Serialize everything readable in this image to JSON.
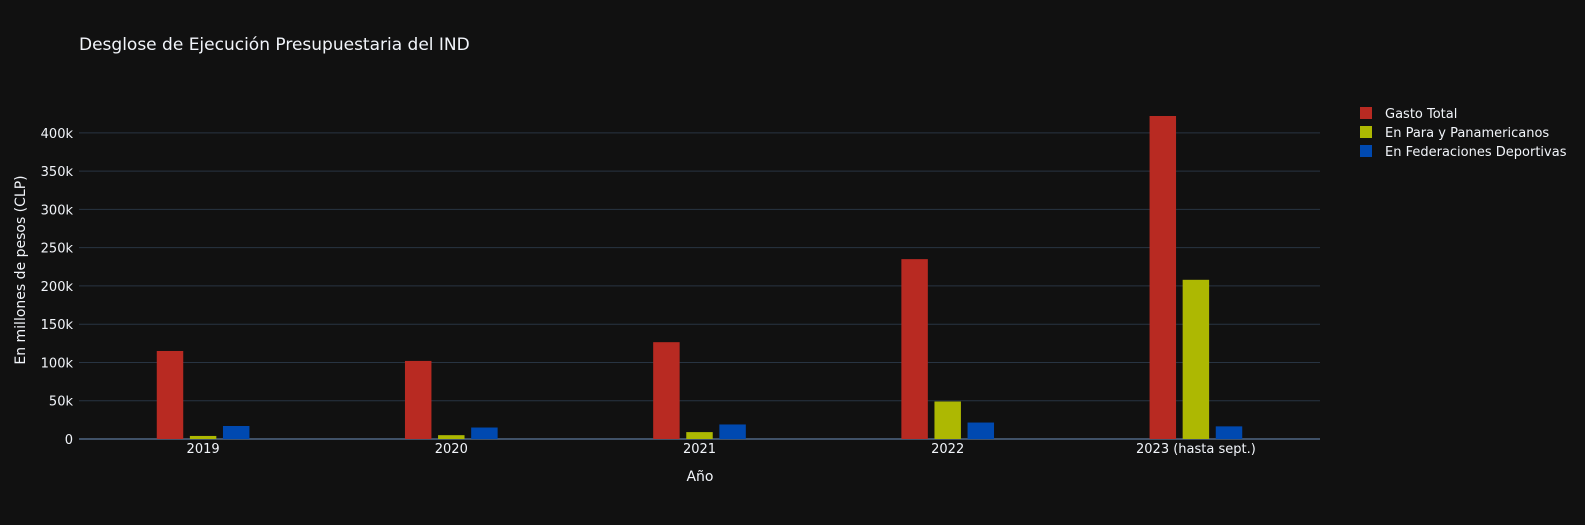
{
  "chart_data": {
    "type": "bar",
    "title": "Desglose de Ejecución Presupuestaria del IND",
    "xlabel": "Año",
    "ylabel": "En millones de pesos (CLP)",
    "categories": [
      "2019",
      "2020",
      "2021",
      "2022",
      "2023 (hasta sept.)"
    ],
    "ylim": [
      0,
      422000
    ],
    "yticks": [
      0,
      50000,
      100000,
      150000,
      200000,
      250000,
      300000,
      350000,
      400000
    ],
    "ytick_labels": [
      "0",
      "50k",
      "100k",
      "150k",
      "200k",
      "250k",
      "300k",
      "350k",
      "400k"
    ],
    "grid": true,
    "legend_position": "top-right",
    "series": [
      {
        "name": "Gasto Total",
        "color": "#b82a22",
        "values": [
          115000,
          102000,
          126500,
          235000,
          422000
        ]
      },
      {
        "name": "En Para y Panamericanos",
        "color": "#adb802",
        "values": [
          4000,
          5000,
          9000,
          49000,
          208000
        ]
      },
      {
        "name": "En Federaciones Deportivas",
        "color": "#0049b0",
        "values": [
          17000,
          15000,
          19000,
          21500,
          16500
        ]
      }
    ]
  }
}
